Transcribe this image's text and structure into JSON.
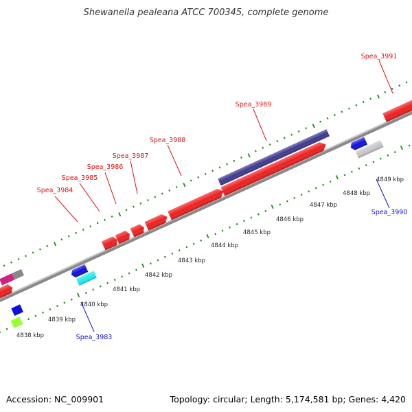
{
  "title": "Shewanella pealeana ATCC 700345, complete genome",
  "footer": {
    "accession": "Accession: NC_009901",
    "info": "Topology: circular; Length: 5,174,581 bp; Genes: 4,420"
  },
  "colors": {
    "forward_gene_label": "#dd1111",
    "reverse_gene_label": "#1111cc",
    "tick": "#1a8a1a",
    "backbone": "#888888"
  },
  "scale_labels": [
    "4838 kbp",
    "4839 kbp",
    "4840 kbp",
    "4841 kbp",
    "4842 kbp",
    "4843 kbp",
    "4844 kbp",
    "4845 kbp",
    "4846 kbp",
    "4847 kbp",
    "4848 kbp",
    "4849 kbp"
  ],
  "gene_labels": {
    "spea_3984": "Spea_3984",
    "spea_3985": "Spea_3985",
    "spea_3986": "Spea_3986",
    "spea_3987": "Spea_3987",
    "spea_3988": "Spea_3988",
    "spea_3989": "Spea_3989",
    "spea_3991": "Spea_3991",
    "spea_3983": "Spea_3983",
    "spea_3990": "Spea_3990"
  }
}
